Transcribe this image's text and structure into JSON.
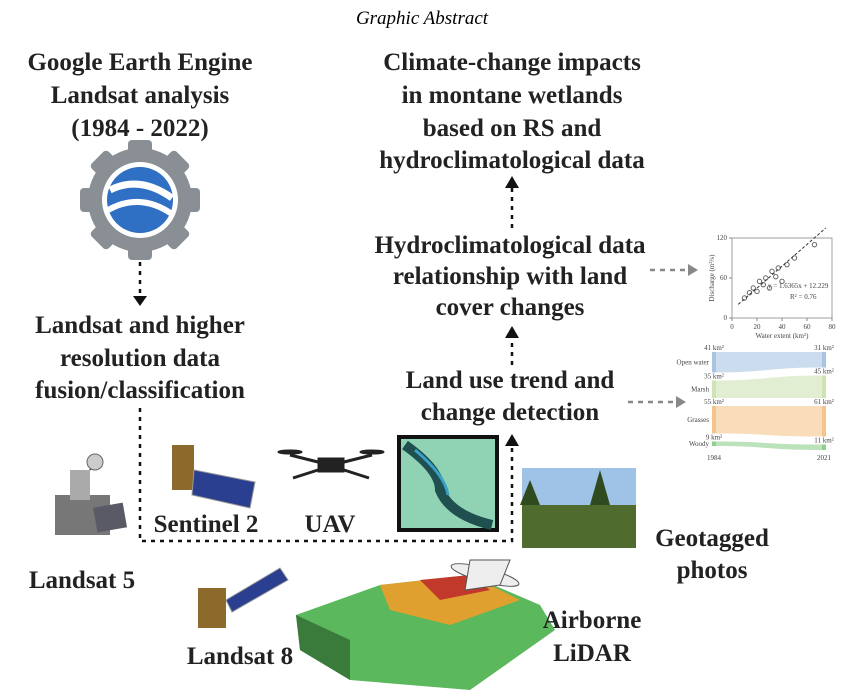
{
  "title": "Graphic Abstract",
  "nodes": {
    "gee": {
      "lines": [
        "Google Earth Engine",
        "Landsat analysis",
        "(1984 - 2022)"
      ]
    },
    "fusion": {
      "lines": [
        "Landsat and higher",
        "resolution data",
        "fusion/classification"
      ]
    },
    "impacts": {
      "lines": [
        "Climate-change impacts",
        "in montane wetlands",
        "based on RS and",
        "hydroclimatological data"
      ]
    },
    "hydro": {
      "lines": [
        "Hydroclimatological data",
        "relationship with land",
        "cover changes"
      ]
    },
    "trend": {
      "lines": [
        "Land use trend and",
        "change detection"
      ]
    }
  },
  "sources": {
    "landsat5": {
      "lines": [
        "Landsat 5"
      ]
    },
    "sentinel2": {
      "lines": [
        "Sentinel 2"
      ]
    },
    "uav": {
      "lines": [
        "UAV"
      ]
    },
    "landsat8": {
      "lines": [
        "Landsat 8"
      ]
    },
    "lidar": {
      "lines": [
        "Airborne",
        "LiDAR"
      ]
    },
    "photos": {
      "lines": [
        "Geotagged",
        "photos"
      ]
    }
  },
  "scatter_inset": {
    "type": "scatter",
    "x_label": "Water extent (km²)",
    "y_label": "Discharge (m³/s)",
    "x": [
      10,
      14,
      17,
      20,
      22,
      25,
      27,
      30,
      32,
      35,
      37,
      40,
      44,
      50,
      66
    ],
    "y": [
      30,
      38,
      45,
      40,
      55,
      50,
      60,
      45,
      70,
      62,
      75,
      55,
      80,
      90,
      110
    ],
    "xlim": [
      0,
      80
    ],
    "ylim": [
      0,
      120
    ],
    "xticks": [
      0,
      20,
      40,
      60,
      80
    ],
    "yticks": [
      0,
      60,
      120
    ],
    "fit": {
      "slope": 1.6365,
      "intercept": 12.229
    },
    "fit_label": "y = 1.6365x + 12.229",
    "r2_label": "R² = 0.76"
  },
  "sankey_inset": {
    "type": "sankey",
    "categories": [
      "Open water",
      "Marsh",
      "Grasses",
      "Woody"
    ],
    "colors": [
      "#a9c4e3",
      "#cfe3b4",
      "#f5c48c",
      "#8fcf8f"
    ],
    "left_values": [
      41,
      35,
      55,
      9
    ],
    "left_labels": [
      "41 km²",
      "35 km²",
      "55 km²",
      "9 km²"
    ],
    "right_values": [
      31,
      45,
      61,
      11
    ],
    "right_labels": [
      "31 km²",
      "45 km²",
      "61 km²",
      "11 km²"
    ],
    "years": [
      "1984",
      "2021"
    ]
  }
}
